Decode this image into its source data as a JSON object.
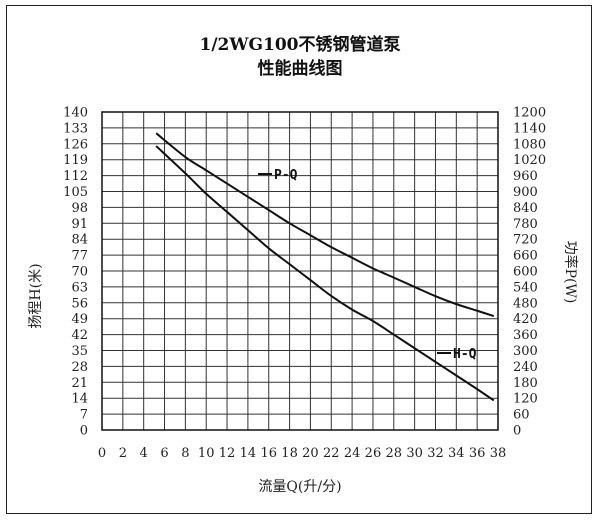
{
  "chart_data": {
    "type": "line",
    "title": "1/2WG100不锈钢管道泵",
    "subtitle": "性能曲线图",
    "xlabel": "流量Q(升/分)",
    "ylabel_left": "扬程H(米)",
    "ylabel_right": "功率P(W)",
    "xlim": [
      0,
      38
    ],
    "ylim_left": [
      0,
      140
    ],
    "ylim_right": [
      0,
      1200
    ],
    "x_ticks": [
      "0",
      "2",
      "4",
      "6",
      "8",
      "10",
      "12",
      "14",
      "16",
      "18",
      "20",
      "22",
      "24",
      "26",
      "28",
      "30",
      "32",
      "34",
      "36",
      "38"
    ],
    "y_left_ticks": [
      "0",
      "7",
      "14",
      "21",
      "28",
      "35",
      "42",
      "49",
      "56",
      "63",
      "70",
      "77",
      "84",
      "91",
      "98",
      "105",
      "112",
      "119",
      "126",
      "133",
      "140"
    ],
    "y_right_ticks": [
      "0",
      "60",
      "120",
      "180",
      "240",
      "300",
      "360",
      "420",
      "480",
      "540",
      "600",
      "660",
      "720",
      "780",
      "840",
      "900",
      "960",
      "1020",
      "1080",
      "1140",
      "1200"
    ],
    "grid": true,
    "series": [
      {
        "name": "P-Q",
        "axis": "right",
        "x": [
          5.2,
          8,
          10,
          12,
          14,
          16,
          18,
          20,
          22,
          24,
          26,
          28,
          30,
          32,
          34,
          36,
          37.6
        ],
        "y": [
          1120,
          1030,
          980,
          930,
          880,
          830,
          780,
          735,
          690,
          650,
          610,
          575,
          540,
          505,
          475,
          450,
          430
        ]
      },
      {
        "name": "H-Q",
        "axis": "left",
        "x": [
          5.2,
          8,
          10,
          12,
          14,
          16,
          18,
          20,
          22,
          24,
          26,
          28,
          30,
          32,
          34,
          36,
          37.6
        ],
        "y": [
          125,
          113,
          104,
          96,
          88,
          80,
          73,
          66,
          59,
          53,
          48,
          42,
          36,
          30,
          24,
          18,
          13
        ]
      }
    ]
  }
}
